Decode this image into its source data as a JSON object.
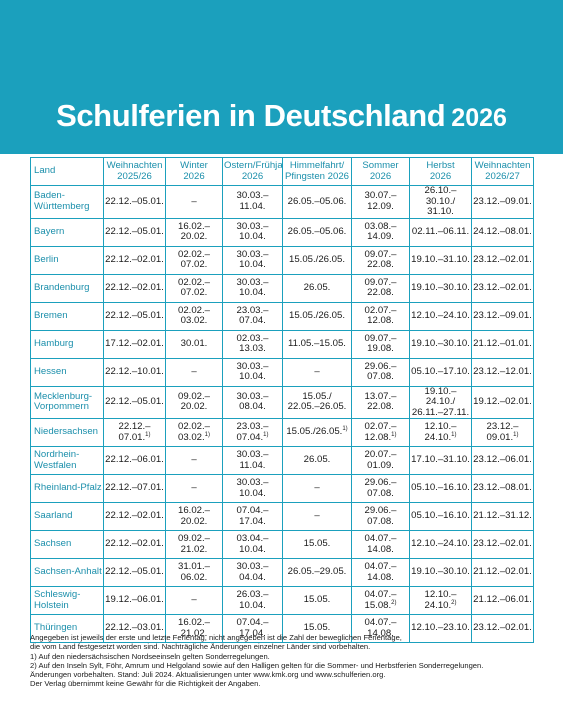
{
  "header": {
    "title": "Schulferien in Deutschland",
    "year": "2026",
    "accent_color": "#1ba0bd"
  },
  "table": {
    "columns": [
      {
        "line1": "Land",
        "line2": ""
      },
      {
        "line1": "Weihnachten",
        "line2": "2025/26"
      },
      {
        "line1": "Winter",
        "line2": "2026"
      },
      {
        "line1": "Ostern/Frühjahr",
        "line2": "2026"
      },
      {
        "line1": "Himmelfahrt/",
        "line2": "Pfingsten 2026"
      },
      {
        "line1": "Sommer",
        "line2": "2026"
      },
      {
        "line1": "Herbst",
        "line2": "2026"
      },
      {
        "line1": "Weihnachten",
        "line2": "2026/27"
      }
    ],
    "rows": [
      {
        "land": "Baden-\nWürttemberg",
        "cells": [
          "22.12.–05.01.",
          "–",
          "30.03.–11.04.",
          "26.05.–05.06.",
          "30.07.–12.09.",
          "26.10.–30.10./\n31.10.",
          "23.12.–09.01."
        ]
      },
      {
        "land": "Bayern",
        "cells": [
          "22.12.–05.01.",
          "16.02.–20.02.",
          "30.03.–10.04.",
          "26.05.–05.06.",
          "03.08.–14.09.",
          "02.11.–06.11.",
          "24.12.–08.01."
        ]
      },
      {
        "land": "Berlin",
        "cells": [
          "22.12.–02.01.",
          "02.02.–07.02.",
          "30.03.–10.04.",
          "15.05./26.05.",
          "09.07.–22.08.",
          "19.10.–31.10.",
          "23.12.–02.01."
        ]
      },
      {
        "land": "Brandenburg",
        "cells": [
          "22.12.–02.01.",
          "02.02.–07.02.",
          "30.03.–10.04.",
          "26.05.",
          "09.07.–22.08.",
          "19.10.–30.10.",
          "23.12.–02.01."
        ]
      },
      {
        "land": "Bremen",
        "cells": [
          "22.12.–05.01.",
          "02.02.–03.02.",
          "23.03.–07.04.",
          "15.05./26.05.",
          "02.07.–12.08.",
          "12.10.–24.10.",
          "23.12.–09.01."
        ]
      },
      {
        "land": "Hamburg",
        "cells": [
          "17.12.–02.01.",
          "30.01.",
          "02.03.–13.03.",
          "11.05.–15.05.",
          "09.07.–19.08.",
          "19.10.–30.10.",
          "21.12.–01.01."
        ]
      },
      {
        "land": "Hessen",
        "cells": [
          "22.12.–10.01.",
          "–",
          "30.03.–10.04.",
          "–",
          "29.06.–07.08.",
          "05.10.–17.10.",
          "23.12.–12.01."
        ]
      },
      {
        "land": "Mecklenburg-\nVorpommern",
        "cells": [
          "22.12.–05.01.",
          "09.02.–20.02.",
          "30.03.–08.04.",
          "15.05./\n22.05.–26.05.",
          "13.07.–22.08.",
          "19.10.–24.10./\n26.11.–27.11.",
          "19.12.–02.01."
        ]
      },
      {
        "land": "Niedersachsen",
        "cells": [
          "22.12.–07.01.",
          "02.02.–03.02.",
          "23.03.–07.04.",
          "15.05./26.05.",
          "02.07.–12.08.",
          "12.10.–24.10.",
          "23.12.–09.01."
        ],
        "sup": [
          "1)",
          "1)",
          "1)",
          "1)",
          "1)",
          "1)",
          "1)"
        ]
      },
      {
        "land": "Nordrhein-\nWestfalen",
        "cells": [
          "22.12.–06.01.",
          "–",
          "30.03.–11.04.",
          "26.05.",
          "20.07.–01.09.",
          "17.10.–31.10.",
          "23.12.–06.01."
        ]
      },
      {
        "land": "Rheinland-Pfalz",
        "cells": [
          "22.12.–07.01.",
          "–",
          "30.03.–10.04.",
          "–",
          "29.06.–07.08.",
          "05.10.–16.10.",
          "23.12.–08.01."
        ]
      },
      {
        "land": "Saarland",
        "cells": [
          "22.12.–02.01.",
          "16.02.–20.02.",
          "07.04.–17.04.",
          "–",
          "29.06.–07.08.",
          "05.10.–16.10.",
          "21.12.–31.12."
        ]
      },
      {
        "land": "Sachsen",
        "cells": [
          "22.12.–02.01.",
          "09.02.–21.02.",
          "03.04.–10.04.",
          "15.05.",
          "04.07.–14.08.",
          "12.10.–24.10.",
          "23.12.–02.01."
        ]
      },
      {
        "land": "Sachsen-Anhalt",
        "cells": [
          "22.12.–05.01.",
          "31.01.–06.02.",
          "30.03.–04.04.",
          "26.05.–29.05.",
          "04.07.–14.08.",
          "19.10.–30.10.",
          "21.12.–02.01."
        ]
      },
      {
        "land": "Schleswig-\nHolstein",
        "cells": [
          "19.12.–06.01.",
          "–",
          "26.03.–10.04.",
          "15.05.",
          "04.07.–15.08.",
          "12.10.–24.10.",
          "21.12.–06.01."
        ],
        "sup": [
          "",
          "",
          "",
          "",
          "2)",
          "2)",
          ""
        ]
      },
      {
        "land": "Thüringen",
        "cells": [
          "22.12.–03.01.",
          "16.02.–21.02.",
          "07.04.–17.04.",
          "15.05.",
          "04.07.–14.08.",
          "12.10.–23.10.",
          "23.12.–02.01."
        ]
      }
    ]
  },
  "footnotes": [
    "Angegeben ist jeweils der erste und letzte Ferientag, nicht angegeben ist die Zahl der beweglichen Ferientage,",
    "die vom Land festgesetzt worden sind. Nachträgliche Änderungen einzelner Länder sind vorbehalten.",
    "1) Auf den niedersächsischen Nordseeinseln gelten Sonderregelungen.",
    "2) Auf den Inseln Sylt, Föhr, Amrum und Helgoland sowie auf den Halligen gelten für die Sommer- und Herbstferien Sonderregelungen.",
    "Änderungen vorbehalten. Stand: Juli 2024. Aktualisierungen unter www.kmk.org und www.schulferien.org.",
    "Der Verlag übernimmt keine Gewähr für die Richtigkeit der Angaben."
  ]
}
